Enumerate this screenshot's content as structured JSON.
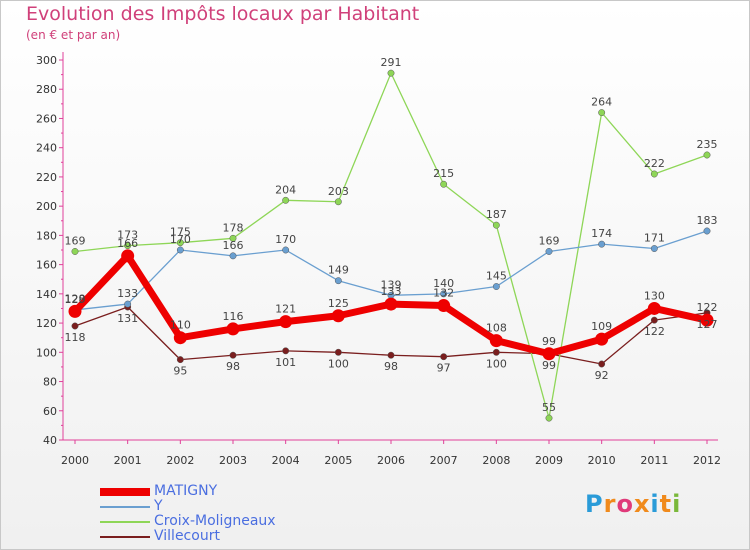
{
  "title": "Evolution des Impôts locaux par Habitant",
  "subtitle": "(en € et par an)",
  "logo": {
    "letters": [
      "P",
      "r",
      "o",
      "x",
      "i",
      "t",
      "i"
    ],
    "colors": [
      "#2a9bd8",
      "#f08a1c",
      "#e03a7a",
      "#f08a1c",
      "#2a9bd8",
      "#f08a1c",
      "#7ab83a"
    ]
  },
  "chart_data": {
    "type": "line",
    "title": "Evolution des Impôts locaux par Habitant",
    "subtitle": "(en € et par an)",
    "xlabel": "",
    "ylabel": "",
    "x": [
      "2000",
      "2001",
      "2002",
      "2003",
      "2004",
      "2005",
      "2006",
      "2007",
      "2008",
      "2009",
      "2010",
      "2011",
      "2012"
    ],
    "ylim": [
      40,
      300
    ],
    "yticks": [
      "40",
      "60",
      "80",
      "100",
      "120",
      "140",
      "160",
      "180",
      "200",
      "220",
      "240",
      "260",
      "280",
      "300"
    ],
    "grid": false,
    "legend_position": "bottom-left",
    "series": [
      {
        "name": "Villecourt",
        "color": "#7a1e1e",
        "values": [
          118,
          131,
          95,
          98,
          101,
          100,
          98,
          97,
          100,
          99,
          92,
          122,
          127
        ],
        "labels": [
          "118",
          "131",
          "95",
          "98",
          "101",
          "100",
          "98",
          "97",
          "100",
          "99",
          "92",
          "122",
          "127"
        ]
      },
      {
        "name": "Croix-Moligneaux",
        "color": "#8ed657",
        "values": [
          169,
          173,
          175,
          178,
          204,
          203,
          291,
          215,
          187,
          55,
          264,
          222,
          235
        ],
        "labels": [
          "169",
          "173",
          "175",
          "178",
          "204",
          "203",
          "291",
          "215",
          "187",
          "55",
          "264",
          "222",
          "235"
        ]
      },
      {
        "name": "Y",
        "color": "#6a9fd0",
        "values": [
          129,
          133,
          170,
          166,
          170,
          149,
          139,
          140,
          145,
          169,
          174,
          171,
          183
        ],
        "labels": [
          "129",
          "133",
          "170",
          "166",
          "170",
          "149",
          "139",
          "140",
          "145",
          "169",
          "174",
          "171",
          "183"
        ]
      },
      {
        "name": "MATIGNY",
        "color": "#ee0000",
        "values": [
          128,
          166,
          110,
          116,
          121,
          125,
          133,
          132,
          108,
          99,
          109,
          130,
          122
        ],
        "labels": [
          "128",
          "166",
          "110",
          "116",
          "121",
          "125",
          "133",
          "132",
          "108",
          "99",
          "109",
          "130",
          "122"
        ]
      }
    ]
  }
}
